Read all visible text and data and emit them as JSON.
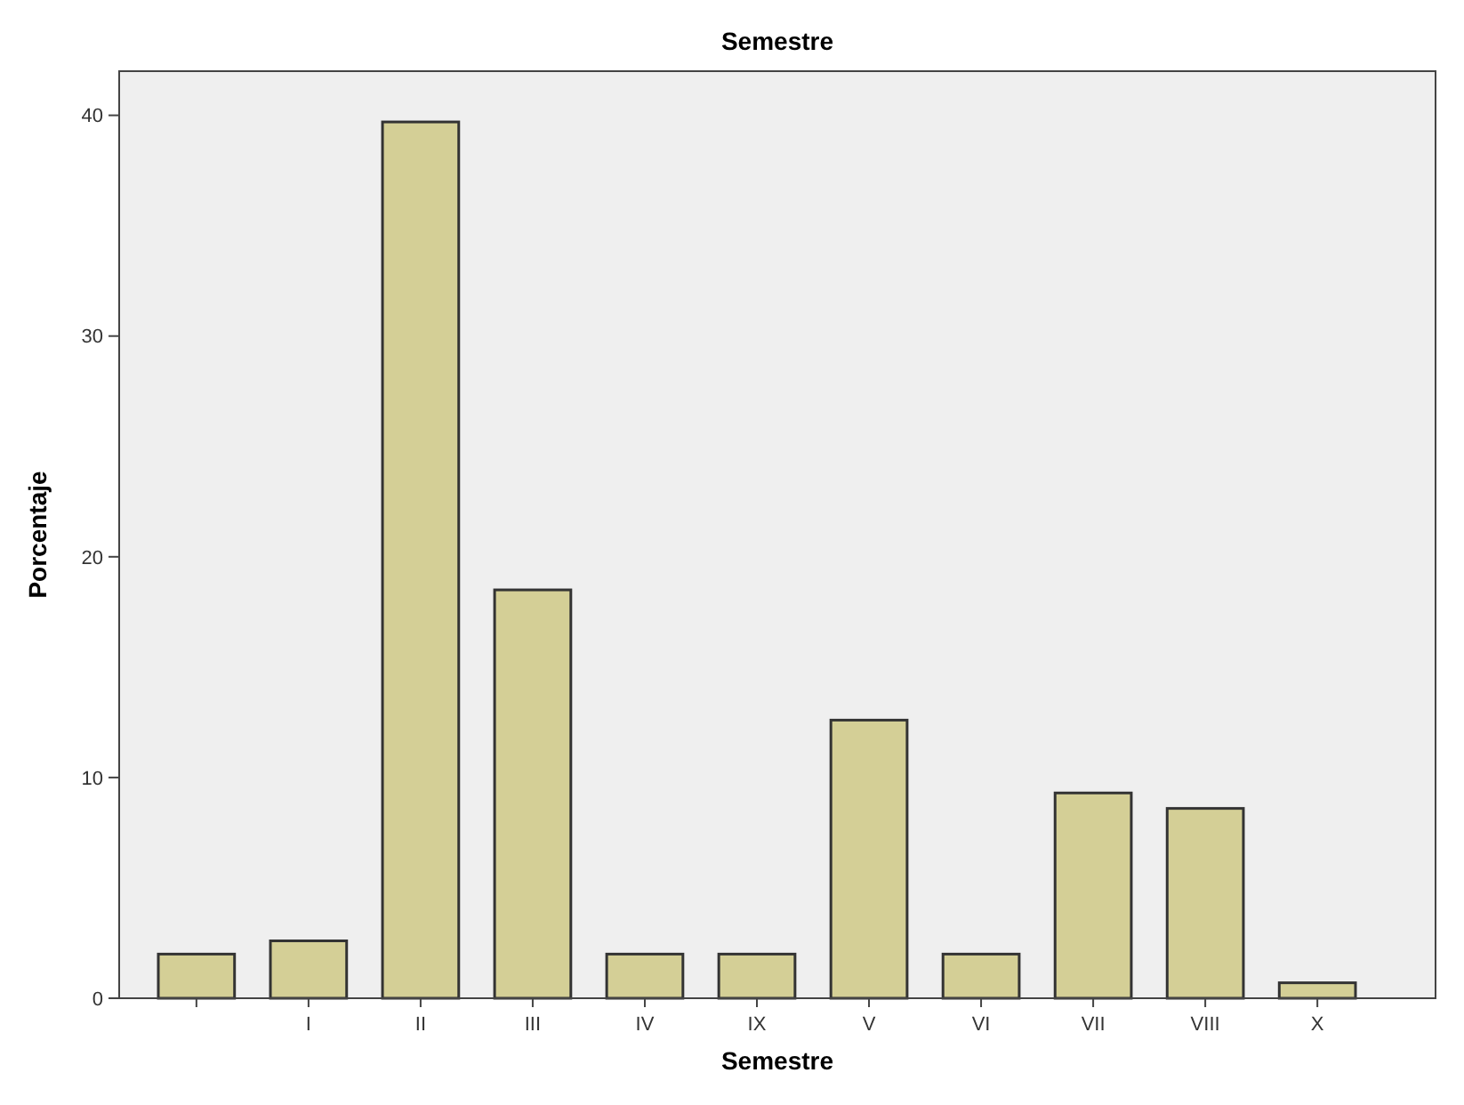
{
  "chart_data": {
    "type": "bar",
    "title": "Semestre",
    "xlabel": "Semestre",
    "ylabel": "Porcentaje",
    "categories": [
      null,
      "I",
      "II",
      "III",
      "IV",
      "IX",
      "V",
      "VI",
      "VII",
      "VIII",
      "X"
    ],
    "values": [
      2.0,
      2.6,
      39.7,
      18.5,
      2.0,
      2.0,
      12.6,
      2.0,
      9.3,
      8.6,
      0.7
    ],
    "color": "#d4cf96",
    "ylim": [
      0,
      42
    ],
    "yticks": [
      0,
      10,
      20,
      30,
      40
    ],
    "grid": false
  }
}
